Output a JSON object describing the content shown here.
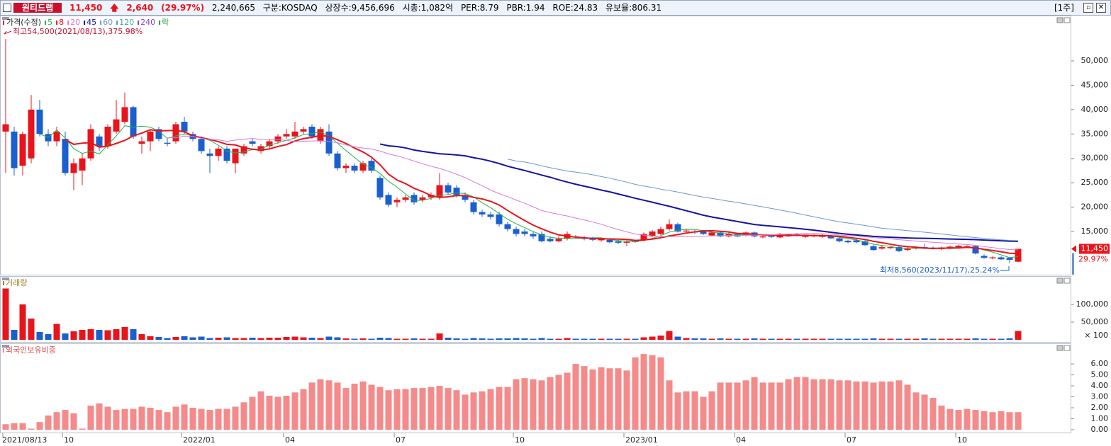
{
  "header": {
    "name": "원티드랩",
    "price": "11,450",
    "change": "2,640",
    "change_pct": "(29.97%)",
    "volume": "2,240,665",
    "market": "구분:KOSDAQ",
    "shares": "상장수:9,456,696",
    "cap": "시총:1,082억",
    "per": "PER:8.79",
    "pbr": "PBR:1.94",
    "roe": "ROE:24.83",
    "reserve": "유보율:806.31",
    "period": "[1주]"
  },
  "chart_data": [
    {
      "type": "candlestick",
      "series_label": "가격(수정)",
      "lock_label": "락",
      "up_color": "#e8141c",
      "down_color": "#1a5fd0",
      "ma": [
        {
          "name": "5",
          "period": 5,
          "color": "#22b04a"
        },
        {
          "name": "8",
          "period": 8,
          "color": "#e8141c"
        },
        {
          "name": "20",
          "period": 20,
          "color": "#d878d8"
        },
        {
          "name": "45",
          "period": 45,
          "color": "#1414a0"
        },
        {
          "name": "60",
          "period": 60,
          "color": "#6a98c8"
        },
        {
          "name": "120",
          "period": 120,
          "color": "#40a8a8"
        },
        {
          "name": "240",
          "period": 240,
          "color": "#8a40c8"
        }
      ],
      "annotations": {
        "high": "최고54,500(2021/08/13),375.98%",
        "low": "최저8,560(2023/11/17),25.24%"
      },
      "last_price_label": "11,450",
      "last_pct_label": "29.97%",
      "categories": [
        "2021/08/13",
        null,
        null,
        null,
        null,
        null,
        null,
        "10",
        null,
        null,
        null,
        null,
        null,
        null,
        null,
        null,
        null,
        null,
        null,
        null,
        null,
        "2022/01",
        null,
        null,
        null,
        null,
        null,
        null,
        null,
        null,
        null,
        null,
        null,
        "04",
        null,
        null,
        null,
        null,
        null,
        null,
        null,
        null,
        null,
        null,
        null,
        null,
        "07",
        null,
        null,
        null,
        null,
        null,
        null,
        null,
        null,
        null,
        null,
        null,
        null,
        null,
        "10",
        null,
        null,
        null,
        null,
        null,
        null,
        null,
        null,
        null,
        null,
        null,
        null,
        "2023/01",
        null,
        null,
        null,
        null,
        null,
        null,
        null,
        null,
        null,
        null,
        null,
        null,
        "04",
        null,
        null,
        null,
        null,
        null,
        null,
        null,
        null,
        null,
        null,
        null,
        null,
        "07",
        null,
        null,
        null,
        null,
        null,
        null,
        null,
        null,
        null,
        null,
        null,
        null,
        "10",
        null,
        null,
        null,
        null,
        null,
        null,
        null
      ],
      "values": [
        [
          35500,
          54500,
          27000,
          37000
        ],
        [
          35500,
          36500,
          26500,
          28000
        ],
        [
          28500,
          35500,
          26500,
          35000
        ],
        [
          30000,
          43000,
          29000,
          40000
        ],
        [
          40000,
          42000,
          34500,
          35000
        ],
        [
          35000,
          36000,
          32500,
          33500
        ],
        [
          33500,
          36500,
          32500,
          35500
        ],
        [
          34000,
          35500,
          26500,
          27000
        ],
        [
          27000,
          30000,
          23500,
          29000
        ],
        [
          27500,
          31000,
          24500,
          30000
        ],
        [
          30000,
          37000,
          29500,
          36000
        ],
        [
          34500,
          35000,
          31500,
          32500
        ],
        [
          32500,
          37000,
          32000,
          36500
        ],
        [
          35500,
          42000,
          35000,
          38000
        ],
        [
          37500,
          43500,
          37000,
          40500
        ],
        [
          40500,
          40800,
          34000,
          34500
        ],
        [
          33000,
          34500,
          31000,
          33500
        ],
        [
          33500,
          36000,
          31500,
          35500
        ],
        [
          36000,
          36500,
          33500,
          34000
        ],
        [
          33200,
          34000,
          32500,
          33000
        ],
        [
          33500,
          37500,
          33000,
          37000
        ],
        [
          37500,
          38500,
          35000,
          35500
        ],
        [
          35000,
          35500,
          33500,
          34000
        ],
        [
          34000,
          34500,
          31000,
          31500
        ],
        [
          31000,
          32000,
          27000,
          30500
        ],
        [
          30500,
          32500,
          29500,
          32000
        ],
        [
          32000,
          32500,
          29000,
          29500
        ],
        [
          29000,
          32000,
          27000,
          32000
        ],
        [
          31000,
          33000,
          30500,
          32500
        ],
        [
          33500,
          34000,
          32500,
          33000
        ],
        [
          31500,
          33000,
          31000,
          32500
        ],
        [
          32500,
          34000,
          32000,
          33500
        ],
        [
          33500,
          35000,
          33000,
          34500
        ],
        [
          34500,
          36000,
          34000,
          35000
        ],
        [
          34500,
          37500,
          34000,
          35500
        ],
        [
          35500,
          36500,
          35000,
          36000
        ],
        [
          36500,
          37000,
          34000,
          34500
        ],
        [
          33500,
          36500,
          33000,
          36000
        ],
        [
          35500,
          37000,
          30500,
          31000
        ],
        [
          31000,
          31500,
          27500,
          28000
        ],
        [
          28000,
          29000,
          27000,
          28500
        ],
        [
          28500,
          29000,
          27000,
          27500
        ],
        [
          27500,
          29500,
          27000,
          29000
        ],
        [
          29500,
          30000,
          27000,
          27500
        ],
        [
          26000,
          26500,
          21500,
          22000
        ],
        [
          22500,
          23000,
          20000,
          20500
        ],
        [
          21000,
          22000,
          20000,
          21500
        ],
        [
          21500,
          22500,
          21000,
          22000
        ],
        [
          22500,
          23000,
          20500,
          21000
        ],
        [
          21500,
          22500,
          21000,
          22000
        ],
        [
          22000,
          23000,
          21500,
          22500
        ],
        [
          22000,
          27000,
          21500,
          24500
        ],
        [
          24500,
          25000,
          22500,
          23000
        ],
        [
          24000,
          24500,
          22000,
          22500
        ],
        [
          22500,
          23000,
          21000,
          21500
        ],
        [
          21000,
          21500,
          18500,
          19000
        ],
        [
          19000,
          19500,
          18000,
          18500
        ],
        [
          18500,
          19000,
          17500,
          18000
        ],
        [
          18500,
          19000,
          16000,
          16500
        ],
        [
          16500,
          17000,
          15000,
          15500
        ],
        [
          15500,
          16000,
          14000,
          14500
        ],
        [
          15000,
          15500,
          14000,
          14500
        ],
        [
          14500,
          15000,
          13500,
          14000
        ],
        [
          14500,
          15000,
          12800,
          13000
        ],
        [
          13500,
          14000,
          12800,
          13000
        ],
        [
          13000,
          14000,
          12800,
          13500
        ],
        [
          13500,
          15000,
          13200,
          14500
        ],
        [
          14000,
          14300,
          13500,
          13800
        ],
        [
          13800,
          14100,
          13200,
          13500
        ],
        [
          13600,
          13900,
          13000,
          13300
        ],
        [
          13200,
          13700,
          12900,
          13500
        ],
        [
          13300,
          13500,
          12600,
          12800
        ],
        [
          13000,
          13300,
          12400,
          12700
        ],
        [
          12700,
          13200,
          12000,
          12900
        ],
        [
          13000,
          13300,
          12700,
          12900
        ],
        [
          13200,
          14800,
          13000,
          14500
        ],
        [
          14000,
          15300,
          13800,
          15000
        ],
        [
          14500,
          16000,
          14300,
          15500
        ],
        [
          15500,
          17500,
          15200,
          16500
        ],
        [
          16500,
          16800,
          14800,
          15000
        ],
        [
          15000,
          15600,
          14700,
          15200
        ],
        [
          15000,
          15300,
          14500,
          14800
        ],
        [
          15000,
          15200,
          14300,
          14500
        ],
        [
          14200,
          15000,
          14000,
          14800
        ],
        [
          14800,
          15000,
          13800,
          14000
        ],
        [
          14000,
          14800,
          13800,
          14500
        ],
        [
          14500,
          14800,
          13800,
          14000
        ],
        [
          14200,
          15000,
          14000,
          14800
        ],
        [
          14800,
          15000,
          13800,
          14000
        ],
        [
          13800,
          14300,
          13600,
          14000
        ],
        [
          14200,
          14400,
          13700,
          13900
        ],
        [
          13800,
          14700,
          13600,
          14500
        ],
        [
          14000,
          14600,
          13900,
          14400
        ],
        [
          14400,
          14700,
          14000,
          14100
        ],
        [
          13900,
          14300,
          13700,
          14100
        ],
        [
          14000,
          14400,
          13800,
          14200
        ],
        [
          13900,
          14400,
          13700,
          14200
        ],
        [
          14200,
          14300,
          13500,
          13600
        ],
        [
          13600,
          13800,
          12800,
          13000
        ],
        [
          13100,
          13300,
          12600,
          12800
        ],
        [
          13200,
          13500,
          12600,
          12800
        ],
        [
          13000,
          13200,
          12100,
          12200
        ],
        [
          12000,
          12300,
          11000,
          11200
        ],
        [
          11500,
          12200,
          11300,
          11800
        ],
        [
          11600,
          12000,
          11400,
          11800
        ],
        [
          11800,
          12000,
          10800,
          11000
        ],
        [
          11200,
          11800,
          11000,
          11600
        ],
        [
          11500,
          12000,
          11300,
          11800
        ],
        [
          11800,
          12500,
          11400,
          11500
        ],
        [
          11700,
          11900,
          11300,
          11500
        ],
        [
          11400,
          11900,
          11200,
          11700
        ],
        [
          11600,
          12100,
          11400,
          11900
        ],
        [
          11700,
          12300,
          11500,
          12100
        ],
        [
          11800,
          12200,
          11600,
          12000
        ],
        [
          12000,
          12200,
          10300,
          10500
        ],
        [
          10000,
          10300,
          9400,
          9600
        ],
        [
          9500,
          9900,
          9300,
          9700
        ],
        [
          9700,
          9900,
          9200,
          9300
        ],
        [
          9600,
          9800,
          8560,
          9200
        ],
        [
          8810,
          11450,
          8700,
          11450
        ]
      ],
      "ylim": [
        6150,
        58850
      ],
      "yticks": [
        {
          "value": 15000,
          "label": "15,000"
        },
        {
          "value": 20000,
          "label": "20,000"
        },
        {
          "value": 25000,
          "label": "25,000"
        },
        {
          "value": 30000,
          "label": "30,000"
        },
        {
          "value": 35000,
          "label": "35,000"
        },
        {
          "value": 40000,
          "label": "40,000"
        },
        {
          "value": 45000,
          "label": "45,000"
        },
        {
          "value": 50000,
          "label": "50,000"
        }
      ]
    },
    {
      "type": "bar",
      "title": "거래량",
      "unit_label": "× 100",
      "values": [
        145000,
        28000,
        100000,
        60000,
        22000,
        16000,
        45000,
        18000,
        24000,
        28000,
        30000,
        28000,
        27000,
        30000,
        36000,
        30000,
        16000,
        10000,
        8000,
        5000,
        8000,
        10000,
        7000,
        9000,
        5000,
        6000,
        7000,
        5000,
        5000,
        6000,
        5000,
        6000,
        6000,
        8000,
        9000,
        7000,
        6000,
        5000,
        9000,
        7000,
        4000,
        3000,
        4000,
        3000,
        6000,
        5000,
        3000,
        3000,
        4000,
        3000,
        3000,
        18000,
        6000,
        4000,
        3000,
        5000,
        4000,
        3000,
        4000,
        4000,
        5000,
        4000,
        3000,
        5000,
        3000,
        3000,
        5000,
        3000,
        3000,
        3000,
        3000,
        3000,
        3000,
        3000,
        3000,
        7000,
        9000,
        12000,
        25000,
        9000,
        5000,
        4000,
        4000,
        3000,
        4000,
        3000,
        3000,
        3000,
        4000,
        3000,
        3000,
        3000,
        3000,
        3000,
        3000,
        3000,
        3000,
        3000,
        3000,
        3000,
        3000,
        3000,
        4000,
        3000,
        3000,
        3000,
        3000,
        3000,
        4000,
        3000,
        3000,
        3000,
        3000,
        3000,
        4000,
        3000,
        3000,
        3000,
        4000,
        25000
      ],
      "ylim": [
        0,
        176000
      ],
      "yticks": [
        {
          "value": 50000,
          "label": "50,000"
        },
        {
          "value": 100000,
          "label": "100,000"
        }
      ]
    },
    {
      "type": "bar",
      "title": "외국인보유비중",
      "color": "#f48a8a",
      "values": [
        0.5,
        0.6,
        0.6,
        0.1,
        0.7,
        1.3,
        1.6,
        1.8,
        1.5,
        0.1,
        2.2,
        2.4,
        2.1,
        1.8,
        1.9,
        1.9,
        2.1,
        2.0,
        1.8,
        1.6,
        2.1,
        2.3,
        2.0,
        1.9,
        1.8,
        1.9,
        1.9,
        2.1,
        2.5,
        3.0,
        3.5,
        3.1,
        3.0,
        3.1,
        3.4,
        3.7,
        4.3,
        4.6,
        4.5,
        4.3,
        3.8,
        4.2,
        4.4,
        4.1,
        3.9,
        3.6,
        3.7,
        3.7,
        3.8,
        3.8,
        3.9,
        4.0,
        3.8,
        3.6,
        3.2,
        3.4,
        3.5,
        3.7,
        3.9,
        3.9,
        4.6,
        4.7,
        4.6,
        4.5,
        4.8,
        5.0,
        5.2,
        6.0,
        5.8,
        5.5,
        5.7,
        5.6,
        5.6,
        5.4,
        6.6,
        6.9,
        6.8,
        6.6,
        4.5,
        3.4,
        3.5,
        3.5,
        3.0,
        3.5,
        4.3,
        4.3,
        4.3,
        4.5,
        4.8,
        4.3,
        4.3,
        4.3,
        4.6,
        4.8,
        4.8,
        4.6,
        4.6,
        4.6,
        4.5,
        4.5,
        4.4,
        4.4,
        4.3,
        4.4,
        4.4,
        4.5,
        4.1,
        3.4,
        3.2,
        2.9,
        2.2,
        1.9,
        1.8,
        1.9,
        1.8,
        1.7,
        1.6,
        1.7,
        1.6,
        1.6
      ],
      "ylim": [
        0,
        7.68
      ],
      "yticks": [
        {
          "value": 0,
          "label": "0.00"
        },
        {
          "value": 1,
          "label": "1.00"
        },
        {
          "value": 2,
          "label": "2.00"
        },
        {
          "value": 3,
          "label": "3.00"
        },
        {
          "value": 4,
          "label": "4.00"
        },
        {
          "value": 5,
          "label": "5.00"
        },
        {
          "value": 6,
          "label": "6.00"
        }
      ]
    }
  ]
}
